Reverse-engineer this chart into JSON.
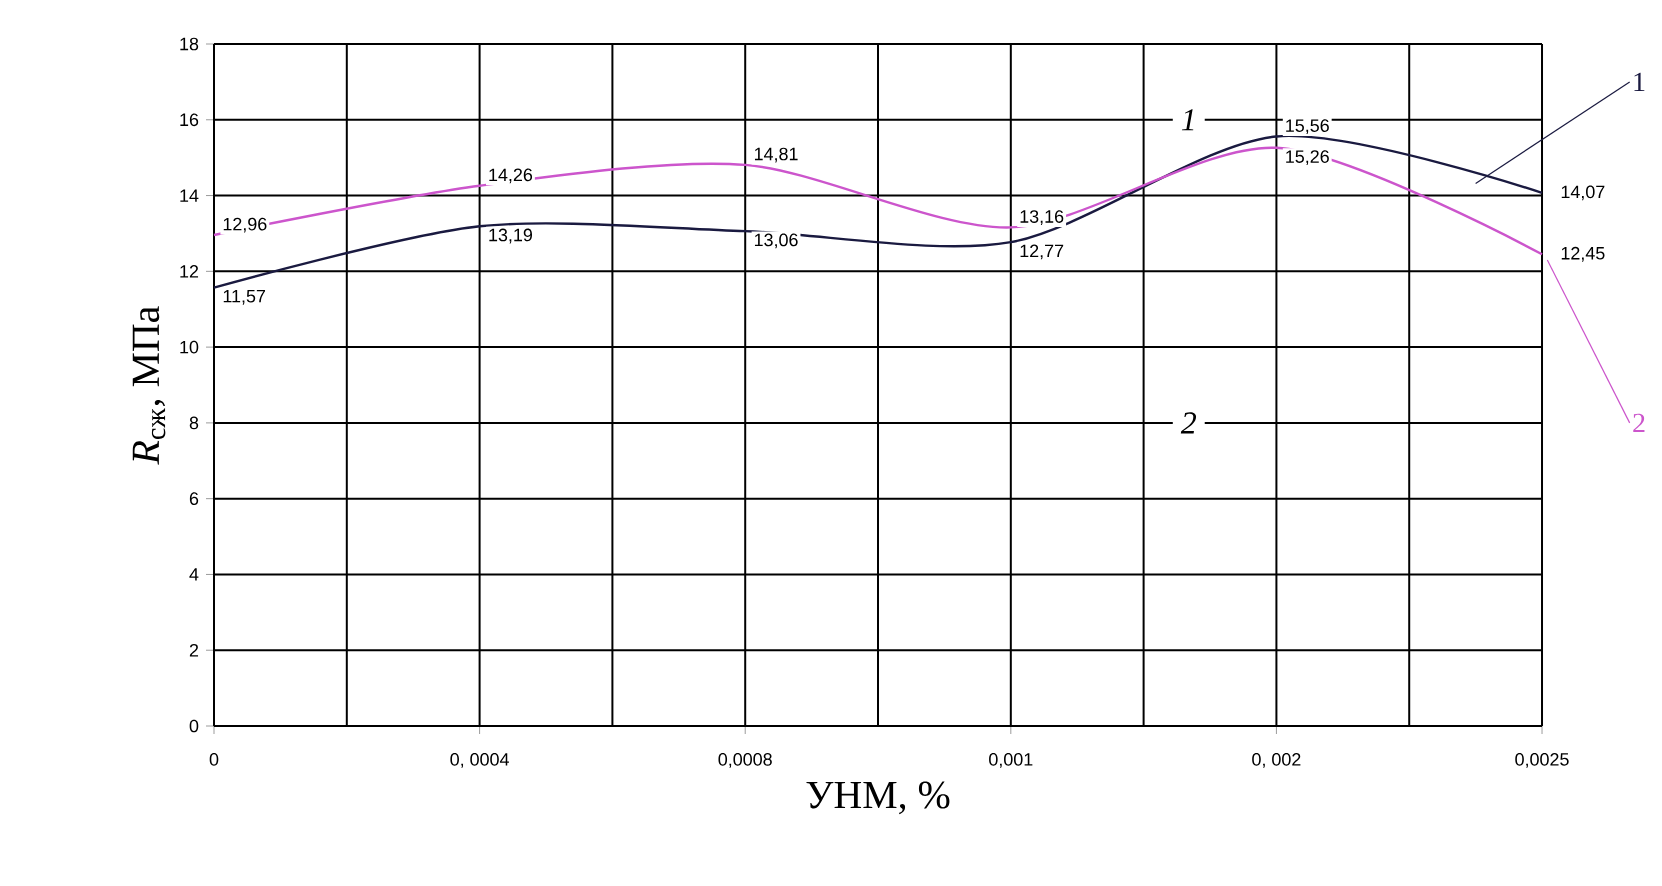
{
  "chart_data": {
    "type": "line",
    "xlabel": "УНМ, %",
    "ylabel": "*R*$_{сж}$, МПа",
    "categories": [
      "0",
      "0, 0004",
      "0,0008",
      "0,001",
      "0, 002",
      "0,0025"
    ],
    "series": [
      {
        "name": "1",
        "color": "#1a1a40",
        "values": [
          11.57,
          13.19,
          13.06,
          12.77,
          15.56,
          14.07
        ],
        "value_labels": [
          "11,57",
          "13,19",
          "13,06",
          "12,77",
          "15,56",
          "14,07"
        ]
      },
      {
        "name": "2",
        "color": "#cc55cc",
        "values": [
          12.96,
          14.26,
          14.81,
          13.16,
          15.26,
          12.45
        ],
        "value_labels": [
          "12,96",
          "14,26",
          "14,81",
          "13,16",
          "15,26",
          "12,45"
        ]
      }
    ],
    "ylim": [
      0,
      18
    ],
    "yticks": [
      0,
      2,
      4,
      6,
      8,
      10,
      12,
      14,
      16,
      18
    ],
    "grid": true,
    "annotations": [
      "*1*",
      "*2*"
    ]
  }
}
